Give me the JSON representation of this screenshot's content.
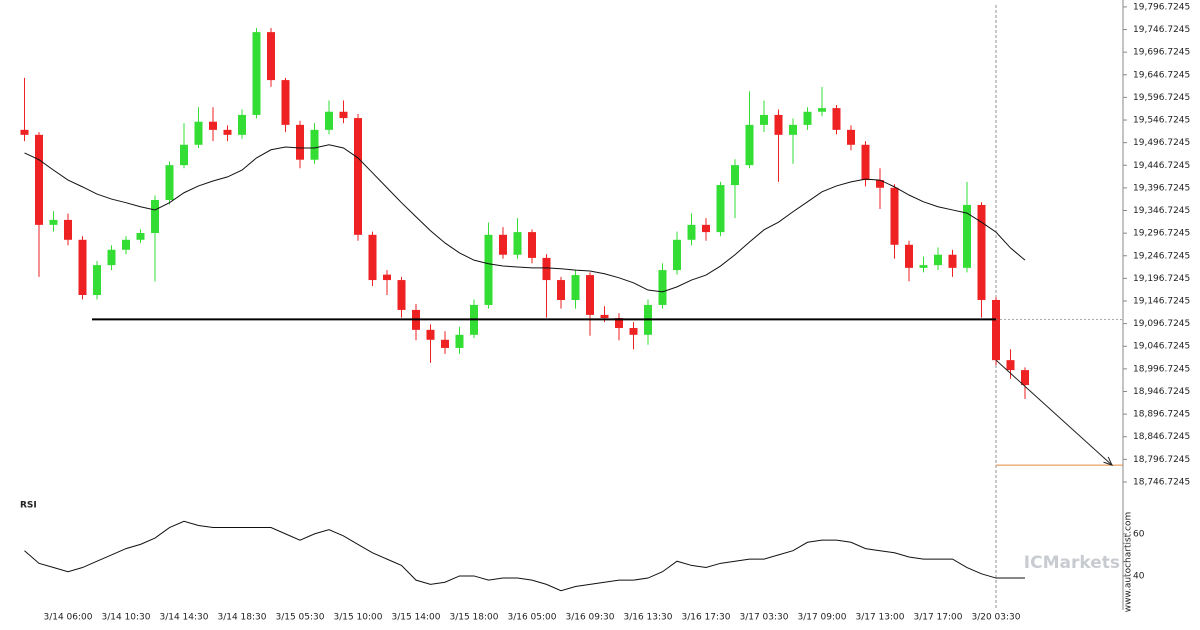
{
  "chart_data": {
    "type": "candlestick",
    "categories": [
      null,
      null,
      null,
      "3/14 06:00",
      null,
      null,
      null,
      "3/14 10:30",
      null,
      null,
      null,
      "3/14 14:30",
      null,
      null,
      null,
      "3/14 18:30",
      null,
      null,
      null,
      "3/15 05:30",
      null,
      null,
      null,
      "3/15 10:00",
      null,
      null,
      null,
      "3/15 14:00",
      null,
      null,
      null,
      "3/15 18:00",
      null,
      null,
      null,
      "3/16 05:00",
      null,
      null,
      null,
      "3/16 09:30",
      null,
      null,
      null,
      "3/16 13:30",
      null,
      null,
      null,
      "3/16 17:30",
      null,
      null,
      null,
      "3/17 03:30",
      null,
      null,
      null,
      "3/17 09:00",
      null,
      null,
      null,
      "3/17 13:00",
      null,
      null,
      null,
      "3/17 17:00",
      null,
      null,
      null,
      "3/20 03:30",
      null,
      null
    ],
    "candles": [
      [
        19525,
        19640,
        19500,
        19514
      ],
      [
        19514,
        19520,
        19200,
        19315
      ],
      [
        19315,
        19345,
        19300,
        19326
      ],
      [
        19326,
        19340,
        19270,
        19282
      ],
      [
        19282,
        19290,
        19150,
        19160
      ],
      [
        19160,
        19235,
        19150,
        19226
      ],
      [
        19226,
        19270,
        19215,
        19260
      ],
      [
        19260,
        19290,
        19250,
        19282
      ],
      [
        19282,
        19305,
        19275,
        19297
      ],
      [
        19297,
        19380,
        19190,
        19370
      ],
      [
        19370,
        19455,
        19360,
        19447
      ],
      [
        19447,
        19540,
        19440,
        19492
      ],
      [
        19492,
        19575,
        19485,
        19543
      ],
      [
        19543,
        19575,
        19500,
        19525
      ],
      [
        19525,
        19535,
        19500,
        19514
      ],
      [
        19514,
        19570,
        19505,
        19558
      ],
      [
        19558,
        19750,
        19550,
        19741
      ],
      [
        19741,
        19750,
        19620,
        19635
      ],
      [
        19635,
        19640,
        19520,
        19536
      ],
      [
        19536,
        19545,
        19440,
        19459
      ],
      [
        19459,
        19540,
        19450,
        19525
      ],
      [
        19525,
        19590,
        19515,
        19565
      ],
      [
        19565,
        19590,
        19540,
        19551
      ],
      [
        19551,
        19560,
        19280,
        19293
      ],
      [
        19293,
        19300,
        19180,
        19193
      ],
      [
        19205,
        19215,
        19160,
        19193
      ],
      [
        19193,
        19200,
        19110,
        19127
      ],
      [
        19127,
        19140,
        19060,
        19083
      ],
      [
        19083,
        19095,
        19010,
        19061
      ],
      [
        19061,
        19080,
        19030,
        19043
      ],
      [
        19043,
        19090,
        19030,
        19072
      ],
      [
        19072,
        19150,
        19065,
        19138
      ],
      [
        19138,
        19320,
        19130,
        19293
      ],
      [
        19293,
        19310,
        19240,
        19249
      ],
      [
        19249,
        19330,
        19240,
        19299
      ],
      [
        19299,
        19305,
        19230,
        19242
      ],
      [
        19242,
        19250,
        19110,
        19193
      ],
      [
        19193,
        19200,
        19130,
        19149
      ],
      [
        19149,
        19215,
        19130,
        19204
      ],
      [
        19204,
        19210,
        19070,
        19116
      ],
      [
        19116,
        19135,
        19100,
        19109
      ],
      [
        19109,
        19120,
        19060,
        19087
      ],
      [
        19087,
        19100,
        19040,
        19072
      ],
      [
        19072,
        19150,
        19050,
        19138
      ],
      [
        19138,
        19230,
        19130,
        19215
      ],
      [
        19215,
        19300,
        19205,
        19282
      ],
      [
        19282,
        19340,
        19270,
        19315
      ],
      [
        19315,
        19330,
        19280,
        19299
      ],
      [
        19299,
        19410,
        19290,
        19403
      ],
      [
        19403,
        19460,
        19330,
        19447
      ],
      [
        19447,
        19610,
        19440,
        19536
      ],
      [
        19536,
        19590,
        19520,
        19558
      ],
      [
        19558,
        19570,
        19410,
        19514
      ],
      [
        19514,
        19550,
        19450,
        19536
      ],
      [
        19536,
        19575,
        19525,
        19565
      ],
      [
        19565,
        19620,
        19555,
        19573
      ],
      [
        19573,
        19580,
        19515,
        19525
      ],
      [
        19525,
        19535,
        19480,
        19492
      ],
      [
        19492,
        19500,
        19400,
        19414
      ],
      [
        19414,
        19440,
        19350,
        19397
      ],
      [
        19397,
        19405,
        19240,
        19271
      ],
      [
        19271,
        19280,
        19190,
        19220
      ],
      [
        19220,
        19245,
        19210,
        19226
      ],
      [
        19226,
        19265,
        19215,
        19249
      ],
      [
        19249,
        19260,
        19200,
        19220
      ],
      [
        19220,
        19410,
        19210,
        19359
      ],
      [
        19359,
        19365,
        19110,
        19149
      ],
      [
        19149,
        19155,
        19005,
        19016
      ],
      [
        19016,
        19040,
        18975,
        18994
      ],
      [
        18994,
        19000,
        18930,
        18961
      ]
    ],
    "up_color": "#33dd33",
    "down_color": "#ee2222",
    "ma": [
      19474,
      19459,
      19436,
      19414,
      19399,
      19383,
      19372,
      19364,
      19355,
      19348,
      19364,
      19386,
      19401,
      19412,
      19421,
      19436,
      19463,
      19481,
      19487,
      19485,
      19485,
      19492,
      19485,
      19463,
      19430,
      19397,
      19364,
      19333,
      19302,
      19275,
      19253,
      19237,
      19229,
      19224,
      19222,
      19220,
      19220,
      19218,
      19215,
      19213,
      19207,
      19198,
      19187,
      19171,
      19167,
      19178,
      19193,
      19204,
      19224,
      19249,
      19277,
      19304,
      19321,
      19344,
      19366,
      19388,
      19401,
      19410,
      19416,
      19414,
      19399,
      19381,
      19366,
      19355,
      19348,
      19341,
      19321,
      19299,
      19264,
      19237
    ],
    "ma_color": "#111111",
    "support_level": 19106,
    "target": 18784,
    "target_color": "#e08a3c",
    "ylim": [
      18729,
      19812
    ],
    "yticks": [
      {
        "value": 19796.7245,
        "label": "19,796.7245"
      },
      {
        "value": 19746.7245,
        "label": "19,746.7245"
      },
      {
        "value": 19696.7245,
        "label": "19,696.7245"
      },
      {
        "value": 19646.7245,
        "label": "19,646.7245"
      },
      {
        "value": 19596.7245,
        "label": "19,596.7245"
      },
      {
        "value": 19546.7245,
        "label": "19,546.7245"
      },
      {
        "value": 19496.7245,
        "label": "19,496.7245"
      },
      {
        "value": 19446.7245,
        "label": "19,446.7245"
      },
      {
        "value": 19396.7245,
        "label": "19,396.7245"
      },
      {
        "value": 19346.7245,
        "label": "19,346.7245"
      },
      {
        "value": 19296.7245,
        "label": "19,296.7245"
      },
      {
        "value": 19246.7245,
        "label": "19,246.7245"
      },
      {
        "value": 19196.7245,
        "label": "19,196.7245"
      },
      {
        "value": 19146.7245,
        "label": "19,146.7245"
      },
      {
        "value": 19096.7245,
        "label": "19,096.7245"
      },
      {
        "value": 19046.7245,
        "label": "19,046.7245"
      },
      {
        "value": 18996.7245,
        "label": "18,996.7245"
      },
      {
        "value": 18946.7245,
        "label": "18,946.7245"
      },
      {
        "value": 18896.7245,
        "label": "18,896.7245"
      },
      {
        "value": 18846.7245,
        "label": "18,846.7245"
      },
      {
        "value": 18796.7245,
        "label": "18,796.7245"
      },
      {
        "value": 18746.7245,
        "label": "18,746.7245"
      }
    ],
    "indicator": "RSI",
    "rsi": [
      52,
      46,
      44,
      42,
      44,
      47,
      50,
      53,
      55,
      58,
      63,
      66,
      64,
      63,
      63,
      63,
      63,
      63,
      60,
      57,
      60,
      62,
      59,
      55,
      51,
      48,
      45,
      38,
      36,
      37,
      40,
      40,
      38,
      39,
      39,
      38,
      36,
      33,
      35,
      36,
      37,
      38,
      38,
      39,
      42,
      47,
      45,
      44,
      46,
      47,
      48,
      48,
      50,
      52,
      56,
      57,
      57,
      56,
      53,
      52,
      51,
      49,
      48,
      48,
      48,
      44,
      41,
      39,
      39,
      39
    ],
    "rsi_ylim": [
      25,
      78
    ],
    "rsi_yticks": [
      40,
      60
    ],
    "watermark": "ICMarkets",
    "credit": "www.autochartist.com"
  }
}
